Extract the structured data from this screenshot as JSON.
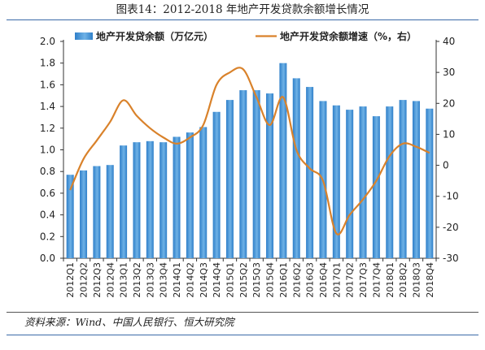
{
  "title": "图表14：2012-2018 年地产开发贷款余额增长情况",
  "source": "资料来源：Wind、中国人民银行、恒大研究院",
  "colors": {
    "bar": "#2f7fc9",
    "bar_light": "#6fb2e6",
    "line": "#d9822b",
    "rule": "#3a6aa8"
  },
  "chart_data": {
    "type": "bar+line",
    "categories": [
      "2012Q1",
      "2012Q2",
      "2012Q3",
      "2012Q4",
      "2013Q1",
      "2013Q2",
      "2013Q3",
      "2013Q4",
      "2014Q1",
      "2014Q2",
      "2014Q3",
      "2014Q4",
      "2015Q1",
      "2015Q2",
      "2015Q3",
      "2015Q4",
      "2016Q1",
      "2016Q2",
      "2016Q3",
      "2016Q4",
      "2017Q1",
      "2017Q2",
      "2017Q3",
      "2017Q4",
      "2018Q1",
      "2018Q2",
      "2018Q3",
      "2018Q4"
    ],
    "series": [
      {
        "name": "地产开发贷余额（万亿元）",
        "type": "bar",
        "axis": "left",
        "values": [
          0.77,
          0.81,
          0.85,
          0.86,
          1.04,
          1.07,
          1.08,
          1.07,
          1.12,
          1.16,
          1.21,
          1.35,
          1.46,
          1.55,
          1.55,
          1.52,
          1.8,
          1.66,
          1.58,
          1.45,
          1.41,
          1.37,
          1.4,
          1.31,
          1.4,
          1.46,
          1.45,
          1.38
        ]
      },
      {
        "name": "地产开发贷余额增速（%，右）",
        "type": "line",
        "axis": "right",
        "values": [
          -8,
          2,
          8,
          14,
          21,
          16,
          12,
          9,
          7,
          9,
          13,
          26,
          30,
          31,
          22,
          13,
          22,
          5,
          -1,
          -5,
          -22,
          -16,
          -11,
          -5,
          3,
          7,
          6,
          4
        ]
      }
    ],
    "y_left": {
      "min": 0.0,
      "max": 2.0,
      "ticks": [
        "0.0",
        "0.2",
        "0.4",
        "0.6",
        "0.8",
        "1.0",
        "1.2",
        "1.4",
        "1.6",
        "1.8",
        "2.0"
      ]
    },
    "y_right": {
      "min": -30,
      "max": 40,
      "ticks": [
        "-30",
        "-20",
        "-10",
        "0",
        "10",
        "20",
        "30",
        "40"
      ]
    },
    "grid": false,
    "legend_position": "top"
  }
}
